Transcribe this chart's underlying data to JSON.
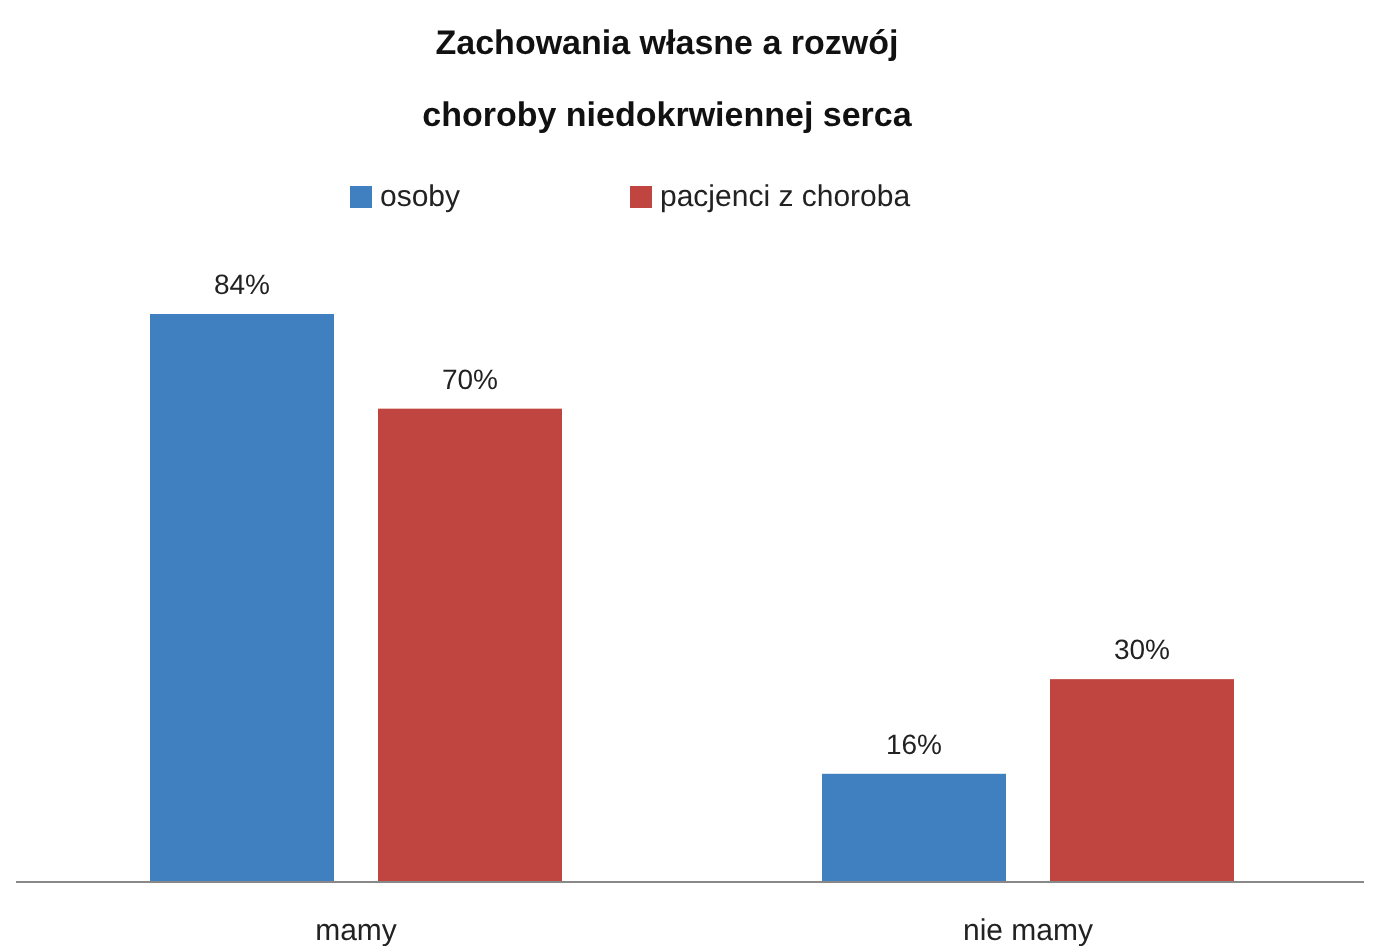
{
  "chart_data": {
    "type": "bar",
    "title": "Zachowania własne a rozwój\nchoroby niedokrwiennej serca",
    "categories": [
      "mamy",
      "nie mamy"
    ],
    "series": [
      {
        "name": "osoby",
        "color": "#4080c0",
        "values": [
          84,
          16
        ],
        "value_labels": [
          "84%",
          "16%"
        ]
      },
      {
        "name": "pacjenci z choroba",
        "color": "#c04440",
        "values": [
          70,
          30
        ],
        "value_labels": [
          "70%",
          "30%"
        ]
      }
    ],
    "legend": "top",
    "tick_labels": "x"
  }
}
